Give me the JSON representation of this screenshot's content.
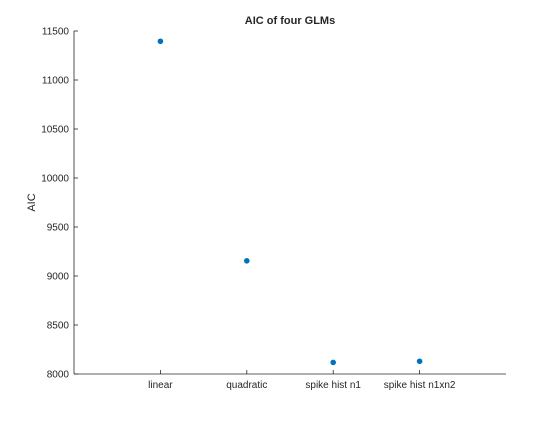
{
  "chart_data": {
    "type": "scatter",
    "title": "AIC of four GLMs",
    "xlabel": "",
    "ylabel": "AIC",
    "categories": [
      "linear",
      "quadratic",
      "spike hist n1",
      "spike hist n1xn2"
    ],
    "series": [
      {
        "values": [
          11395,
          9155,
          8118,
          8130
        ]
      }
    ],
    "xlim": [
      0,
      5
    ],
    "ylim": [
      8000,
      11500
    ],
    "yticks": [
      8000,
      8500,
      9000,
      9500,
      10000,
      10500,
      11000,
      11500
    ],
    "grid": false,
    "marker_color": "#0072BD"
  }
}
